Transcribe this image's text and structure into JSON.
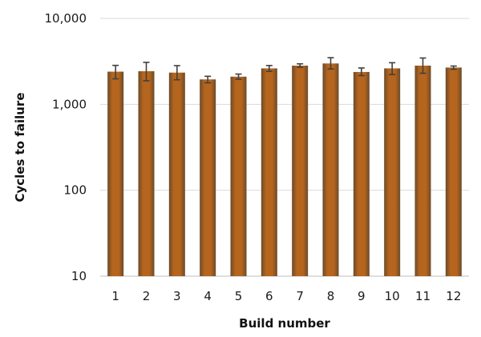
{
  "chart_data": {
    "type": "bar",
    "title": "",
    "xlabel": "Build number",
    "ylabel": "Cycles to failure",
    "yscale": "log",
    "ylim": [
      10,
      10000
    ],
    "yticks": [
      10,
      100,
      1000,
      10000
    ],
    "ytick_labels": [
      "10",
      "100",
      "1,000",
      "10,000"
    ],
    "categories": [
      "1",
      "2",
      "3",
      "4",
      "5",
      "6",
      "7",
      "8",
      "9",
      "10",
      "11",
      "12"
    ],
    "values": [
      2400,
      2430,
      2340,
      1950,
      2100,
      2620,
      2820,
      2990,
      2380,
      2620,
      2820,
      2680
    ],
    "error_low": [
      1980,
      1880,
      1930,
      1780,
      1960,
      2420,
      2700,
      2580,
      2160,
      2220,
      2300,
      2560
    ],
    "error_high": [
      2840,
      3080,
      2820,
      2120,
      2250,
      2830,
      2960,
      3490,
      2650,
      3050,
      3460,
      2790
    ],
    "grid": true,
    "legend": "none",
    "bar_color": "#b5651d",
    "bar_color_edge": "#6b4a2a",
    "error_bar_color": "#404040"
  }
}
